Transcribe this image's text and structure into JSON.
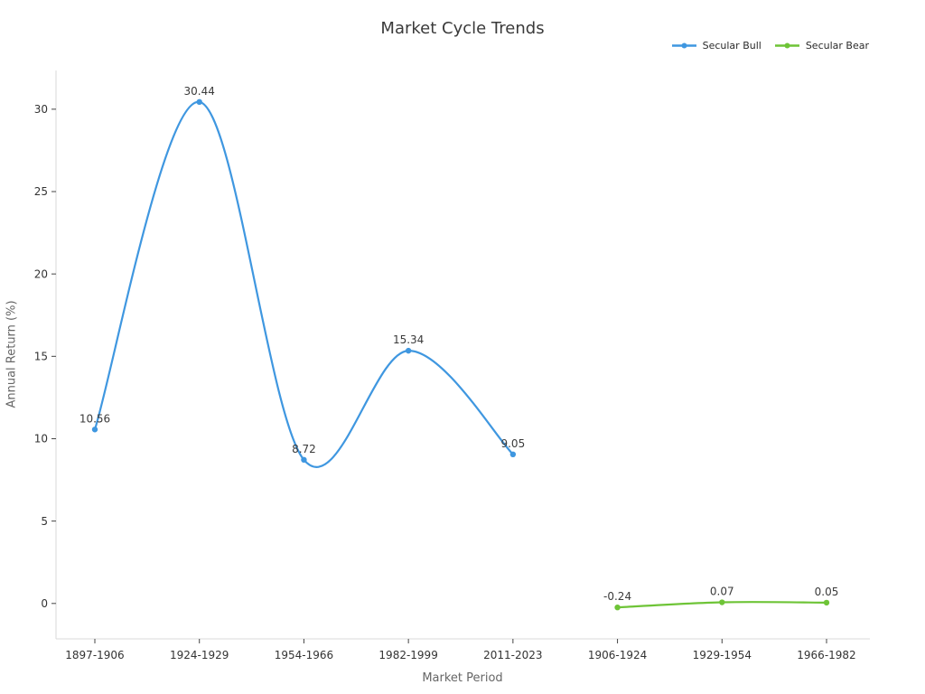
{
  "title": "Market Cycle Trends",
  "chart_data": {
    "type": "line",
    "title": "Market Cycle Trends",
    "xlabel": "Market Period",
    "ylabel": "Annual Return (%)",
    "categories": [
      "1897-1906",
      "1924-1929",
      "1954-1966",
      "1982-1999",
      "2011-2023",
      "1906-1924",
      "1929-1954",
      "1966-1982"
    ],
    "series": [
      {
        "name": "Secular Bull",
        "color": "#3f97e0",
        "values": [
          10.56,
          30.44,
          8.72,
          15.34,
          9.05,
          null,
          null,
          null
        ]
      },
      {
        "name": "Secular Bear",
        "color": "#6ec437",
        "values": [
          null,
          null,
          null,
          null,
          null,
          -0.24,
          0.07,
          0.05
        ]
      }
    ],
    "yticks": [
      0,
      5,
      10,
      15,
      20,
      25,
      30
    ],
    "ylim": [
      -2.15,
      32.35
    ],
    "grid": false,
    "smooth": true,
    "markers": true,
    "data_labels": true,
    "legend_position": "top-right"
  },
  "colors": {
    "background": "#ffffff",
    "spine": "#d9d9d9",
    "tick": "#444444",
    "tick_label": "#333333",
    "axis_title": "#666666",
    "title_text": "#3a3a3a",
    "data_label": "#3a3a3a"
  }
}
